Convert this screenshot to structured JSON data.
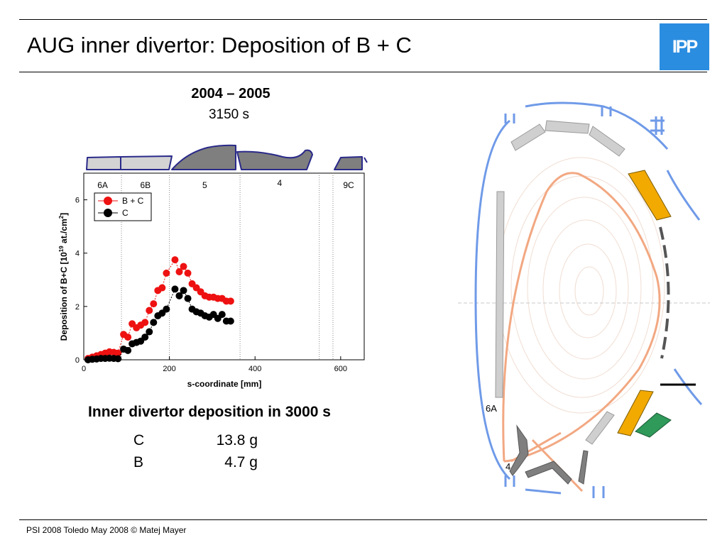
{
  "slide": {
    "title": "AUG inner divertor: Deposition of B + C",
    "logo_text": "IPP",
    "period_title": "2004 – 2005",
    "period_duration": "3150 s",
    "summary_heading": "Inner divertor deposition in 3000 s",
    "masses": [
      {
        "element": "C",
        "value": "13.8 g"
      },
      {
        "element": "B",
        "value": "4.7 g"
      }
    ],
    "footer": "PSI 2008 Toledo May 2008 © Matej Mayer",
    "vessel_labels": [
      "6A",
      "4"
    ]
  },
  "colors": {
    "bc_series": "#ee1111",
    "c_series": "#000000",
    "tile_light": "#d3d3d3",
    "tile_dark": "#7f7f7f",
    "tile_edge": "#2a2a8a",
    "vessel_blue": "#6f9ae8",
    "plasma_orange": "#f2a882",
    "tile_orange": "#f2a900",
    "tile_green": "#2f9a5a",
    "logo_blue": "#2b8de0"
  },
  "chart_data": {
    "type": "scatter",
    "title": "",
    "xlabel": "s-coordinate [mm]",
    "ylabel": "Deposition of B+C [10",
    "ylabel_exp": "19",
    "ylabel_unit": " at./cm",
    "ylabel_unit_exp": "2",
    "ylabel_close": "]",
    "xlim": [
      0,
      655
    ],
    "ylim": [
      0,
      7
    ],
    "xticks": [
      0,
      200,
      400,
      600
    ],
    "yticks": [
      0,
      2,
      4,
      6
    ],
    "grid": false,
    "legend": "top-left",
    "regions": [
      {
        "label": "6A",
        "from": 0,
        "to": 88
      },
      {
        "label": "6B",
        "from": 88,
        "to": 200
      },
      {
        "label": "5",
        "from": 200,
        "to": 365
      },
      {
        "label": "4",
        "from": 365,
        "to": 550
      },
      {
        "label": "9C",
        "from": 582,
        "to": 655
      }
    ],
    "boundaries": [
      88,
      200,
      365,
      550,
      582
    ],
    "series": [
      {
        "name": "B + C",
        "color": "#ee1111",
        "x": [
          10,
          20,
          30,
          40,
          50,
          60,
          70,
          80,
          93,
          103,
          113,
          123,
          133,
          143,
          153,
          163,
          173,
          183,
          193,
          213,
          223,
          233,
          243,
          253,
          263,
          273,
          283,
          293,
          303,
          313,
          323,
          333,
          343
        ],
        "y": [
          0.05,
          0.1,
          0.15,
          0.2,
          0.25,
          0.3,
          0.28,
          0.25,
          0.95,
          0.85,
          1.35,
          1.2,
          1.3,
          1.4,
          1.85,
          2.1,
          2.6,
          2.7,
          3.25,
          3.75,
          3.3,
          3.5,
          3.25,
          2.85,
          2.7,
          2.55,
          2.4,
          2.35,
          2.35,
          2.3,
          2.3,
          2.2,
          2.2
        ]
      },
      {
        "name": "C",
        "color": "#000000",
        "x": [
          10,
          20,
          30,
          40,
          50,
          60,
          70,
          80,
          93,
          103,
          113,
          123,
          133,
          143,
          153,
          163,
          173,
          183,
          193,
          213,
          223,
          233,
          243,
          253,
          263,
          273,
          283,
          293,
          303,
          313,
          323,
          333,
          343
        ],
        "y": [
          0.0,
          0.02,
          0.03,
          0.05,
          0.05,
          0.06,
          0.05,
          0.04,
          0.4,
          0.35,
          0.6,
          0.65,
          0.7,
          0.85,
          1.05,
          1.4,
          1.65,
          1.75,
          1.9,
          2.65,
          2.4,
          2.6,
          2.3,
          1.9,
          1.8,
          1.75,
          1.65,
          1.6,
          1.7,
          1.55,
          1.7,
          1.45,
          1.45
        ]
      }
    ]
  }
}
